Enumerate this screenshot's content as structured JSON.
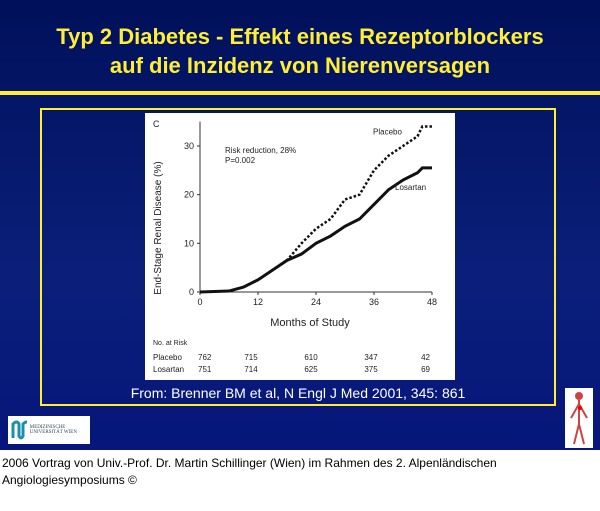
{
  "slide": {
    "title_line1": "Typ 2 Diabetes - Effekt eines Rezeptorblockers",
    "title_line2": "auf die Inzidenz von Nierenversagen",
    "source": "From: Brenner BM et al, N Engl J Med 2001, 345: 861",
    "logo_text": "MEDIZINISCHE UNIVERSITÄT WIEN",
    "footer_line1": "2006 Vortrag von Univ.-Prof. Dr. Martin Schillinger (Wien) im Rahmen des 2. Alpenländischen",
    "footer_line2": "Angiologiesymposiums ©",
    "colors": {
      "background": "#0a1f7a",
      "title": "#ffee33",
      "frame": "#ffee33"
    }
  },
  "chart_data": {
    "type": "line",
    "panel_label": "C",
    "xlabel": "Months of Study",
    "ylabel": "End-Stage Renal Disease (%)",
    "xlim": [
      0,
      48
    ],
    "ylim": [
      0,
      35
    ],
    "xticks": [
      "0",
      "12",
      "24",
      "36",
      "48"
    ],
    "yticks": [
      "0",
      "10",
      "20",
      "30"
    ],
    "annotation_line1": "Risk reduction, 28%",
    "annotation_line2": "P=0.002",
    "series": [
      {
        "name": "Placebo",
        "style": "dotted",
        "x": [
          0,
          6,
          9,
          12,
          15,
          18,
          21,
          24,
          27,
          30,
          33,
          36,
          39,
          42,
          45,
          46,
          48
        ],
        "y": [
          0,
          0.2,
          1,
          2.5,
          4.5,
          6.5,
          10,
          13,
          15,
          19,
          20,
          25,
          28,
          30,
          32,
          34,
          34
        ]
      },
      {
        "name": "Losartan",
        "style": "solid",
        "x": [
          0,
          6,
          9,
          12,
          15,
          18,
          21,
          24,
          27,
          30,
          33,
          36,
          39,
          42,
          45,
          46,
          48
        ],
        "y": [
          0,
          0.2,
          1,
          2.5,
          4.5,
          6.5,
          7.8,
          10,
          11.5,
          13.5,
          15,
          18,
          21,
          23,
          24.5,
          25.5,
          25.5
        ]
      }
    ],
    "at_risk": {
      "header": "No. at Risk",
      "rows": [
        {
          "label": "Placebo",
          "values": [
            "762",
            "715",
            "610",
            "347",
            "42"
          ]
        },
        {
          "label": "Losartan",
          "values": [
            "751",
            "714",
            "625",
            "375",
            "69"
          ]
        }
      ]
    }
  }
}
